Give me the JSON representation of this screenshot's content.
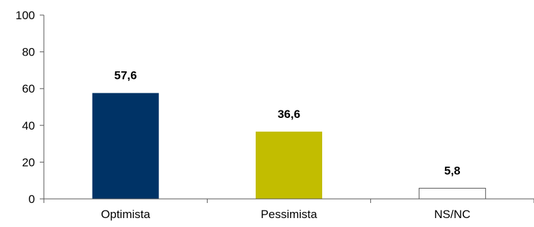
{
  "chart_data": {
    "type": "bar",
    "title": "",
    "xlabel": "",
    "ylabel": "",
    "ylim": [
      0,
      100
    ],
    "yticks": [
      0,
      20,
      40,
      60,
      80,
      100
    ],
    "grid": false,
    "categories": [
      "Optimista",
      "Pessimista",
      "NS/NC"
    ],
    "values": [
      57.6,
      36.6,
      5.8
    ],
    "data_labels": [
      "57,6",
      "36,6",
      "5,8"
    ],
    "bar_colors": [
      "#003366",
      "#c2bd00",
      "#ffffff"
    ],
    "bar_outline": "#555555",
    "axis_color": "#555555"
  }
}
